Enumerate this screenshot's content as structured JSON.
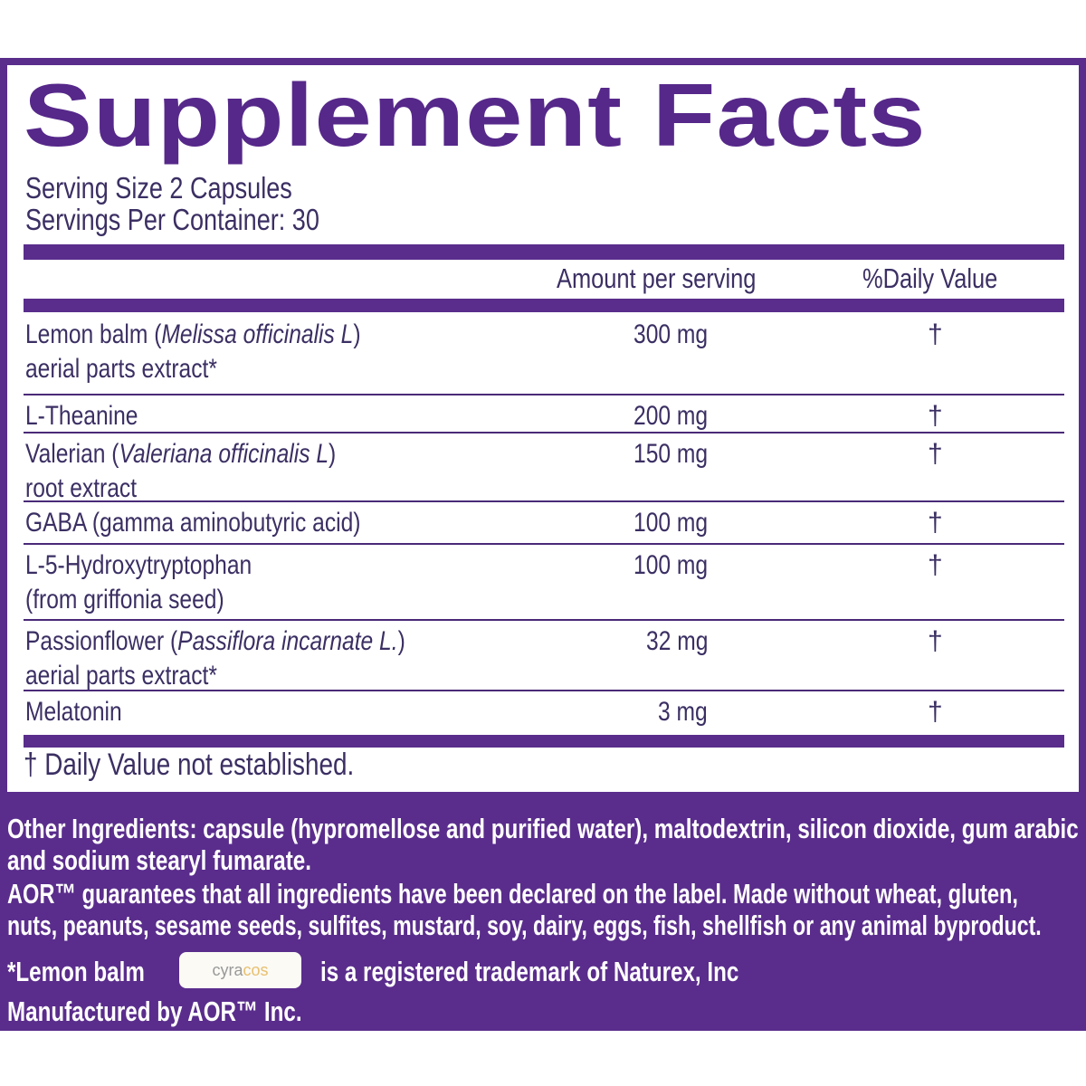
{
  "title": "Supplement Facts",
  "serving_size": "Serving Size 2 Capsules",
  "servings_per_container": "Servings Per Container: 30",
  "columns": {
    "amount": "Amount per serving",
    "daily_value": "%Daily Value"
  },
  "rows": [
    {
      "name_pre": "Lemon balm (",
      "name_italic": "Melissa officinalis L",
      "name_post": ")",
      "line2": "aerial parts extract*",
      "amount": "300 mg",
      "dv": "†"
    },
    {
      "name_pre": "L-Theanine",
      "name_italic": "",
      "name_post": "",
      "line2": "",
      "amount": "200 mg",
      "dv": "†"
    },
    {
      "name_pre": "Valerian (",
      "name_italic": "Valeriana officinalis L",
      "name_post": ")",
      "line2": "root extract",
      "amount": "150 mg",
      "dv": "†"
    },
    {
      "name_pre": "GABA (gamma aminobutyric acid)",
      "name_italic": "",
      "name_post": "",
      "line2": "",
      "amount": "100 mg",
      "dv": "†"
    },
    {
      "name_pre": "L-5-Hydroxytryptophan",
      "name_italic": "",
      "name_post": "",
      "line2": "(from griffonia seed)",
      "amount": "100 mg",
      "dv": "†"
    },
    {
      "name_pre": "Passionflower (",
      "name_italic": "Passiflora incarnate L.",
      "name_post": ")",
      "line2": "aerial parts extract*",
      "amount": "32 mg",
      "dv": "†"
    },
    {
      "name_pre": "Melatonin",
      "name_italic": "",
      "name_post": "",
      "line2": "",
      "amount": "3 mg",
      "dv": "†"
    }
  ],
  "footnote": "† Daily Value not established.",
  "other_ingredients": [
    "Other Ingredients: capsule (hypromellose and purified water), maltodextrin, silicon dioxide, gum arabic",
    "and sodium stearyl fumarate.",
    "AOR™ guarantees that all ingredients have been declared on the label. Made without wheat, gluten,",
    "nuts, peanuts, sesame seeds, sulfites, mustard, soy, dairy, eggs, fish, shellfish or any animal byproduct."
  ],
  "trademark": {
    "pre": "*Lemon balm",
    "logo_a": "cyra",
    "logo_b": "cos",
    "post": "is a registered trademark of Naturex, Inc"
  },
  "manufacturer": "Manufactured by AOR™ Inc.",
  "colors": {
    "brand_purple": "#5a2d8c",
    "text": "#3b2f63"
  }
}
